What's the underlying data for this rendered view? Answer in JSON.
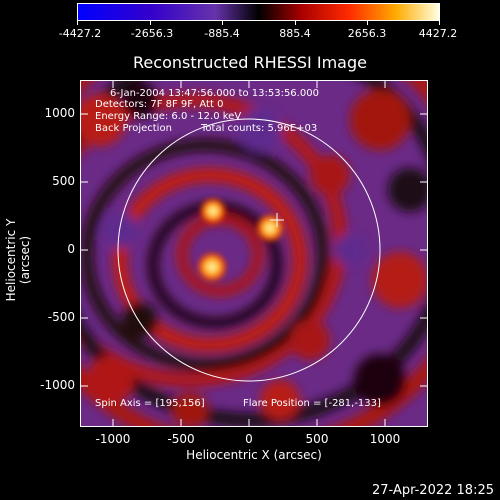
{
  "colorbar": {
    "ticks": [
      "-4427.2",
      "-2656.3",
      "-885.4",
      "885.4",
      "2656.3",
      "4427.2"
    ]
  },
  "title": "Reconstructed RHESSI Image",
  "annotations": {
    "time_range": "6-Jan-2004 13:47:56.000 to 13:53:56.000",
    "detectors": "Detectors: 7F 8F 9F, Att 0",
    "energy": "Energy Range: 6.0 - 12.0 keV",
    "method": "Back Projection",
    "counts": "Total counts: 5.96E+03",
    "spin_axis": "Spin Axis = [195,156]",
    "flare_position": "Flare Position = [-281,-133]"
  },
  "axes": {
    "xlabel": "Heliocentric X (arcsec)",
    "ylabel": "Heliocentric Y (arcsec)",
    "xticks": [
      "-1000",
      "-500",
      "0",
      "500",
      "1000"
    ],
    "yticks": [
      "1000",
      "500",
      "0",
      "-500",
      "-1000"
    ]
  },
  "datestamp": "27-Apr-2022 18:25",
  "colors": {
    "background": "#000000",
    "foreground": "#ffffff"
  }
}
